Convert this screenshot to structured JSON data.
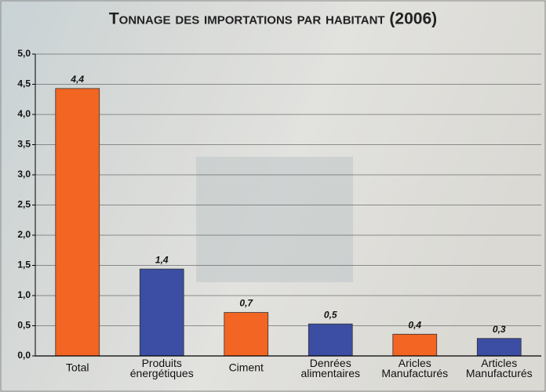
{
  "chart_data": {
    "type": "bar",
    "title": "Tonnage des importations par habitant (2006)",
    "categories": [
      "Total",
      "Produits énergétiques",
      "Ciment",
      "Denrées alimentaires",
      "Aricles Manufacturés",
      "Articles Manufacturés"
    ],
    "values": [
      4.43,
      1.44,
      0.72,
      0.53,
      0.36,
      0.29
    ],
    "value_labels": [
      "4,4",
      "1,4",
      "0,7",
      "0,5",
      "0,4",
      "0,3"
    ],
    "colors": [
      "#f26522",
      "#3b4ea3",
      "#f26522",
      "#3b4ea3",
      "#f26522",
      "#3b4ea3"
    ],
    "ylim": [
      0,
      5
    ],
    "yticks": [
      {
        "value": 0,
        "label": "0,0"
      },
      {
        "value": 0.5,
        "label": "0,5"
      },
      {
        "value": 1,
        "label": "1,0"
      },
      {
        "value": 1.5,
        "label": "1,5"
      },
      {
        "value": 2,
        "label": "2,0"
      },
      {
        "value": 2.5,
        "label": "2,5"
      },
      {
        "value": 3,
        "label": "3,0"
      },
      {
        "value": 3.5,
        "label": "3,5"
      },
      {
        "value": 4,
        "label": "4,0"
      },
      {
        "value": 4.5,
        "label": "4,5"
      },
      {
        "value": 5,
        "label": "5,0"
      }
    ],
    "grid": true
  }
}
